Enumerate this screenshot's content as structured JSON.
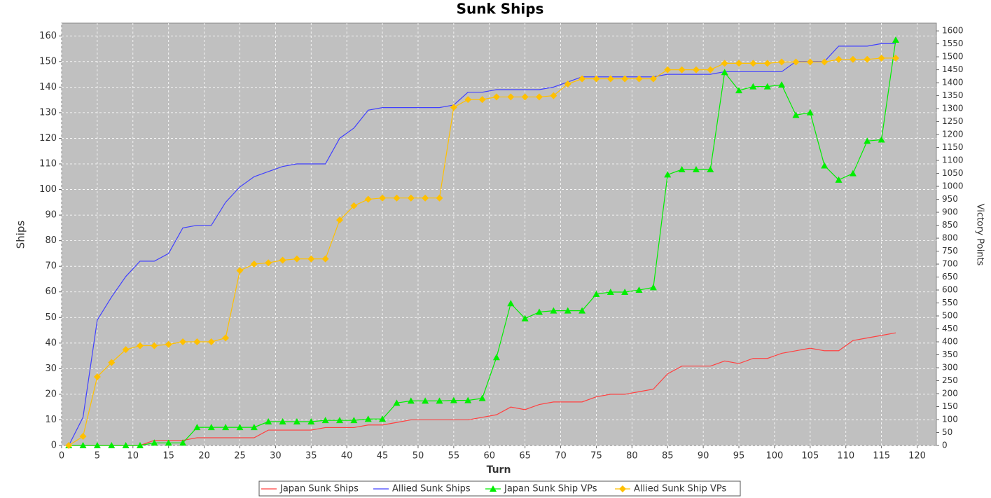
{
  "chart_data": {
    "type": "line",
    "title": "Sunk Ships",
    "x_label": "Turn",
    "y_label": "Ships",
    "y2_label": "Victory Points",
    "x": [
      1,
      3,
      5,
      7,
      9,
      11,
      13,
      15,
      17,
      19,
      21,
      23,
      25,
      27,
      29,
      31,
      33,
      35,
      37,
      39,
      41,
      43,
      45,
      47,
      49,
      51,
      53,
      55,
      57,
      59,
      61,
      63,
      65,
      67,
      69,
      71,
      73,
      75,
      77,
      79,
      81,
      83,
      85,
      87,
      89,
      91,
      93,
      95,
      97,
      99,
      101,
      103,
      105,
      107,
      109,
      111,
      113,
      115,
      117
    ],
    "series": [
      {
        "name": "Japan Sunk Ships",
        "color": "#ff4040",
        "marker": "none",
        "axis": "y",
        "values": [
          0,
          0,
          0,
          0,
          0,
          0,
          2,
          2,
          2,
          3,
          3,
          3,
          3,
          3,
          6,
          6,
          6,
          6,
          7,
          7,
          7,
          8,
          8,
          9,
          10,
          10,
          10,
          10,
          10,
          11,
          12,
          15,
          14,
          16,
          17,
          17,
          17,
          19,
          20,
          20,
          21,
          22,
          28,
          31,
          31,
          31,
          33,
          32,
          34,
          34,
          36,
          37,
          38,
          37,
          37,
          41,
          42,
          43,
          44
        ]
      },
      {
        "name": "Allied Sunk Ships",
        "color": "#4040ff",
        "marker": "none",
        "axis": "y",
        "values": [
          0,
          11,
          49,
          58,
          66,
          72,
          72,
          75,
          85,
          86,
          86,
          95,
          101,
          105,
          107,
          109,
          110,
          110,
          110,
          120,
          124,
          131,
          132,
          132,
          132,
          132,
          132,
          133,
          138,
          138,
          139,
          139,
          139,
          139,
          140,
          142,
          144,
          144,
          144,
          144,
          144,
          144,
          145,
          145,
          145,
          145,
          146,
          146,
          146,
          146,
          146,
          150,
          150,
          150,
          156,
          156,
          156,
          157,
          157
        ]
      },
      {
        "name": "Japan Sunk Ship VPs",
        "color": "#00ee00",
        "marker": "triangle",
        "axis": "y2",
        "values": [
          0,
          0,
          0,
          0,
          0,
          0,
          10,
          10,
          10,
          70,
          70,
          70,
          70,
          70,
          92,
          92,
          92,
          92,
          97,
          97,
          97,
          102,
          102,
          164,
          172,
          172,
          172,
          174,
          174,
          182,
          340,
          548,
          490,
          515,
          520,
          520,
          520,
          584,
          592,
          592,
          600,
          610,
          1045,
          1065,
          1065,
          1065,
          1440,
          1370,
          1385,
          1385,
          1392,
          1275,
          1285,
          1080,
          1025,
          1050,
          1175,
          1180,
          1565
        ]
      },
      {
        "name": "Allied Sunk Ship VPs",
        "color": "#ffc000",
        "marker": "diamond",
        "axis": "y2",
        "values": [
          0,
          35,
          265,
          320,
          370,
          385,
          385,
          390,
          400,
          400,
          400,
          415,
          675,
          700,
          705,
          715,
          720,
          720,
          720,
          870,
          925,
          950,
          955,
          955,
          955,
          955,
          955,
          1305,
          1335,
          1335,
          1345,
          1345,
          1345,
          1345,
          1350,
          1395,
          1415,
          1415,
          1415,
          1415,
          1415,
          1415,
          1450,
          1450,
          1450,
          1450,
          1475,
          1475,
          1475,
          1475,
          1480,
          1480,
          1480,
          1480,
          1490,
          1490,
          1490,
          1495,
          1495
        ]
      }
    ],
    "xlim": [
      0,
      122.7
    ],
    "ylim": [
      0,
      165
    ],
    "y2lim": [
      0,
      1630
    ],
    "xticks": [
      0,
      5,
      10,
      15,
      20,
      25,
      30,
      35,
      40,
      45,
      50,
      55,
      60,
      65,
      70,
      75,
      80,
      85,
      90,
      95,
      100,
      105,
      110,
      115,
      120
    ],
    "yticks": [
      0,
      10,
      20,
      30,
      40,
      50,
      60,
      70,
      80,
      90,
      100,
      110,
      120,
      130,
      140,
      150,
      160
    ],
    "y2ticks": [
      0,
      50,
      100,
      150,
      200,
      250,
      300,
      350,
      400,
      450,
      500,
      550,
      600,
      650,
      700,
      750,
      800,
      850,
      900,
      950,
      1000,
      1050,
      1100,
      1150,
      1200,
      1250,
      1300,
      1350,
      1400,
      1450,
      1500,
      1550,
      1600
    ],
    "grid": true,
    "legend": "bottom"
  }
}
